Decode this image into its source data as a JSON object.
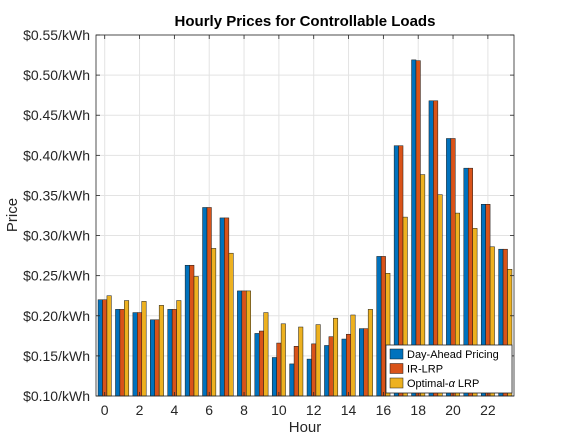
{
  "chart_data": {
    "type": "bar",
    "title": "Hourly Prices for Controllable Loads",
    "xlabel": "Hour",
    "ylabel": "Price",
    "x": [
      0,
      1,
      2,
      3,
      4,
      5,
      6,
      7,
      8,
      9,
      10,
      11,
      12,
      13,
      14,
      15,
      16,
      17,
      18,
      19,
      20,
      21,
      22,
      23
    ],
    "xticks": [
      0,
      2,
      4,
      6,
      8,
      10,
      12,
      14,
      16,
      18,
      20,
      22
    ],
    "xtick_labels": [
      "0",
      "2",
      "4",
      "6",
      "8",
      "10",
      "12",
      "14",
      "16",
      "18",
      "20",
      "22"
    ],
    "xlim": [
      -0.5,
      23.5
    ],
    "ylim": [
      0.1,
      0.55
    ],
    "yticks": [
      0.1,
      0.15,
      0.2,
      0.25,
      0.3,
      0.35,
      0.4,
      0.45,
      0.5,
      0.55
    ],
    "ytick_labels": [
      "$0.10/kWh",
      "$0.15/kWh",
      "$0.20/kWh",
      "$0.25/kWh",
      "$0.30/kWh",
      "$0.35/kWh",
      "$0.40/kWh",
      "$0.45/kWh",
      "$0.50/kWh",
      "$0.55/kWh"
    ],
    "grid": true,
    "legend_position": "bottom-right",
    "series": [
      {
        "name": "Day-Ahead Pricing",
        "color": "#0072BD",
        "values": [
          0.22,
          0.208,
          0.204,
          0.195,
          0.208,
          0.263,
          0.335,
          0.322,
          0.231,
          0.178,
          0.148,
          0.14,
          0.146,
          0.163,
          0.171,
          0.184,
          0.274,
          0.412,
          0.519,
          0.468,
          0.421,
          0.384,
          0.339,
          0.283
        ]
      },
      {
        "name": "IR-LRP",
        "color": "#D95319",
        "values": [
          0.22,
          0.208,
          0.204,
          0.195,
          0.208,
          0.263,
          0.335,
          0.322,
          0.231,
          0.181,
          0.166,
          0.162,
          0.165,
          0.174,
          0.177,
          0.184,
          0.274,
          0.412,
          0.518,
          0.468,
          0.421,
          0.384,
          0.339,
          0.283
        ]
      },
      {
        "name": "Optimal-α LRP",
        "legend_parts": [
          "Optimal-",
          "α",
          " LRP"
        ],
        "color": "#EDB120",
        "values": [
          0.225,
          0.219,
          0.218,
          0.213,
          0.219,
          0.249,
          0.284,
          0.278,
          0.231,
          0.204,
          0.19,
          0.186,
          0.189,
          0.197,
          0.201,
          0.208,
          0.253,
          0.323,
          0.376,
          0.351,
          0.328,
          0.309,
          0.286,
          0.258
        ]
      }
    ]
  }
}
